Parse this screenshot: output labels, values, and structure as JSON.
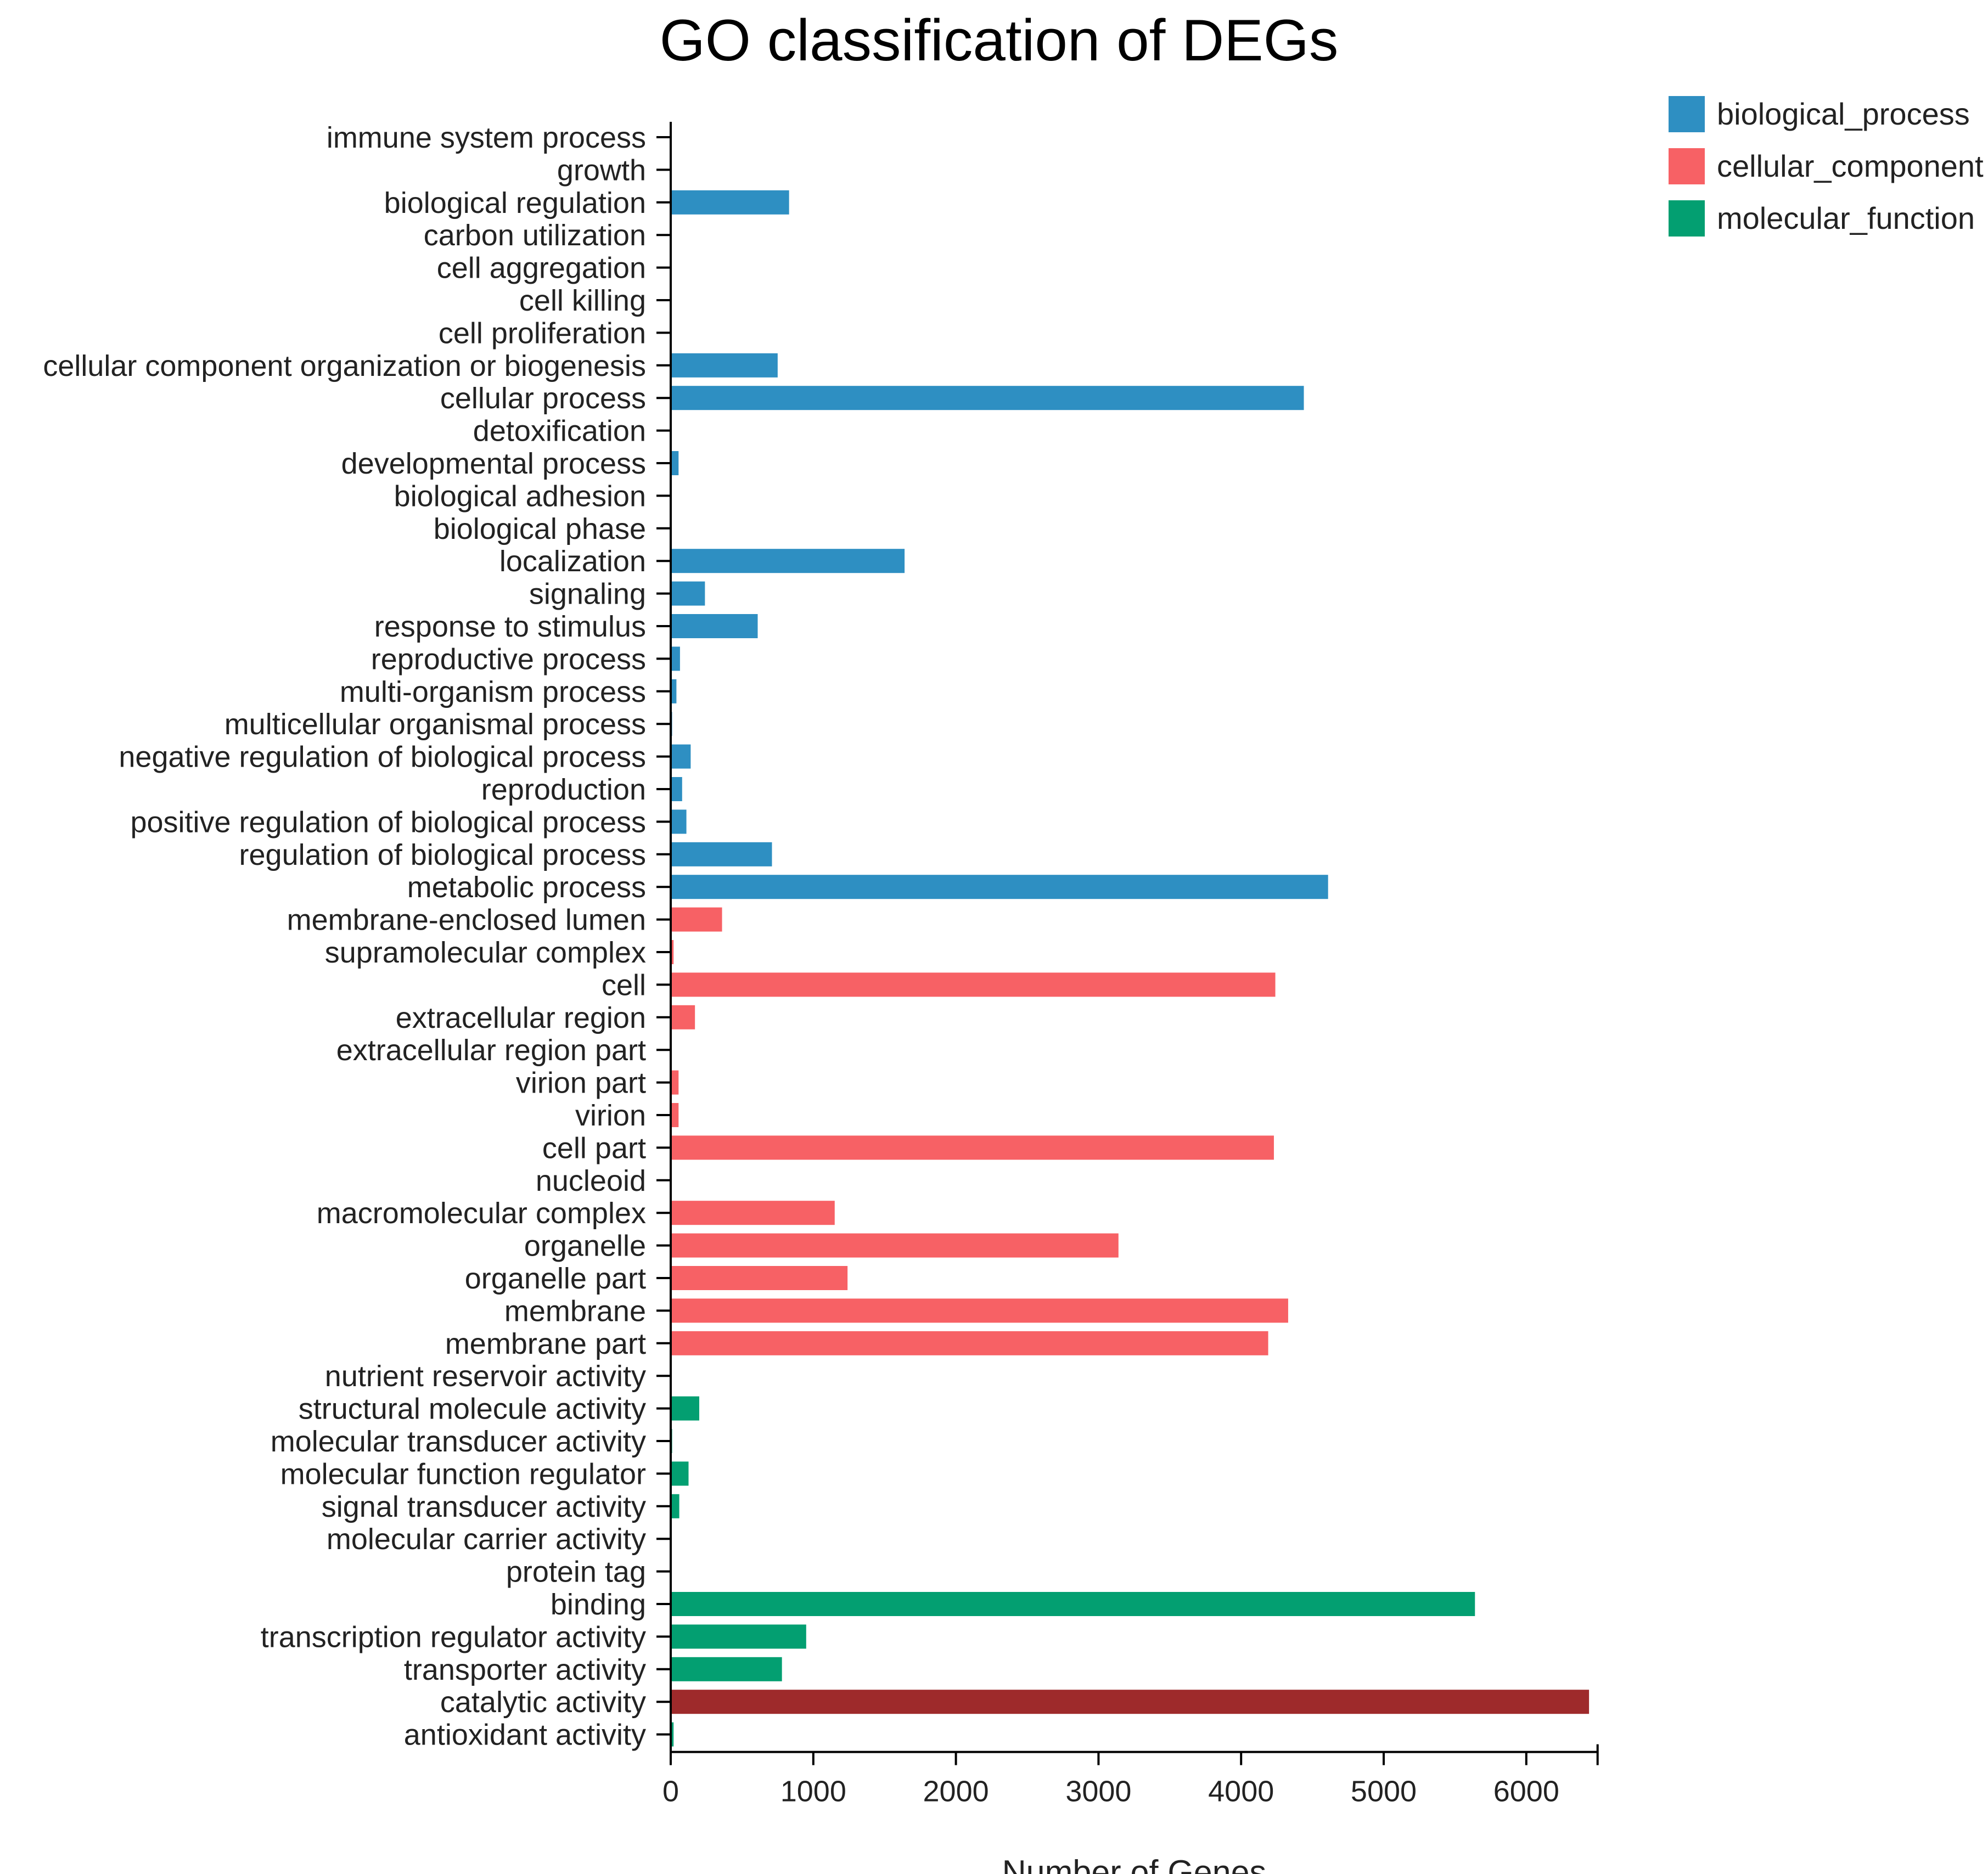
{
  "chart_data": {
    "type": "bar",
    "orientation": "horizontal",
    "title": "GO classification of DEGs",
    "xlabel": "Number of Genes",
    "ylabel": "",
    "xlim": [
      0,
      6500
    ],
    "xticks": [
      0,
      1000,
      2000,
      3000,
      4000,
      5000,
      6000
    ],
    "legend_position": "top-right",
    "series": [
      {
        "name": "biological_process",
        "color": "#2e8fc2"
      },
      {
        "name": "cellular_component",
        "color": "#f76165"
      },
      {
        "name": "molecular_function",
        "color": "#039f71"
      }
    ],
    "highlight_color": "#9e2a2b",
    "categories": [
      {
        "label": "immune system process",
        "value": 3,
        "group": "biological_process"
      },
      {
        "label": "growth",
        "value": 2,
        "group": "biological_process"
      },
      {
        "label": "biological regulation",
        "value": 830,
        "group": "biological_process"
      },
      {
        "label": "carbon utilization",
        "value": 2,
        "group": "biological_process"
      },
      {
        "label": "cell aggregation",
        "value": 2,
        "group": "biological_process"
      },
      {
        "label": "cell killing",
        "value": 2,
        "group": "biological_process"
      },
      {
        "label": "cell proliferation",
        "value": 3,
        "group": "biological_process"
      },
      {
        "label": "cellular component organization or biogenesis",
        "value": 750,
        "group": "biological_process"
      },
      {
        "label": "cellular process",
        "value": 4440,
        "group": "biological_process"
      },
      {
        "label": "detoxification",
        "value": 5,
        "group": "biological_process"
      },
      {
        "label": "developmental process",
        "value": 55,
        "group": "biological_process"
      },
      {
        "label": "biological adhesion",
        "value": 3,
        "group": "biological_process"
      },
      {
        "label": "biological phase",
        "value": 3,
        "group": "biological_process"
      },
      {
        "label": "localization",
        "value": 1640,
        "group": "biological_process"
      },
      {
        "label": "signaling",
        "value": 240,
        "group": "biological_process"
      },
      {
        "label": "response to stimulus",
        "value": 610,
        "group": "biological_process"
      },
      {
        "label": "reproductive process",
        "value": 65,
        "group": "biological_process"
      },
      {
        "label": "multi-organism process",
        "value": 40,
        "group": "biological_process"
      },
      {
        "label": "multicellular organismal process",
        "value": 10,
        "group": "biological_process"
      },
      {
        "label": "negative regulation of biological process",
        "value": 140,
        "group": "biological_process"
      },
      {
        "label": "reproduction",
        "value": 80,
        "group": "biological_process"
      },
      {
        "label": "positive regulation of biological process",
        "value": 110,
        "group": "biological_process"
      },
      {
        "label": "regulation of biological process",
        "value": 710,
        "group": "biological_process"
      },
      {
        "label": "metabolic process",
        "value": 4610,
        "group": "biological_process"
      },
      {
        "label": "membrane-enclosed lumen",
        "value": 360,
        "group": "cellular_component"
      },
      {
        "label": "supramolecular complex",
        "value": 20,
        "group": "cellular_component"
      },
      {
        "label": "cell",
        "value": 4240,
        "group": "cellular_component"
      },
      {
        "label": "extracellular region",
        "value": 170,
        "group": "cellular_component"
      },
      {
        "label": "extracellular region part",
        "value": 5,
        "group": "cellular_component"
      },
      {
        "label": "virion part",
        "value": 55,
        "group": "cellular_component"
      },
      {
        "label": "virion",
        "value": 55,
        "group": "cellular_component"
      },
      {
        "label": "cell part",
        "value": 4230,
        "group": "cellular_component"
      },
      {
        "label": "nucleoid",
        "value": 5,
        "group": "cellular_component"
      },
      {
        "label": "macromolecular complex",
        "value": 1150,
        "group": "cellular_component"
      },
      {
        "label": "organelle",
        "value": 3140,
        "group": "cellular_component"
      },
      {
        "label": "organelle part",
        "value": 1240,
        "group": "cellular_component"
      },
      {
        "label": "membrane",
        "value": 4330,
        "group": "cellular_component"
      },
      {
        "label": "membrane part",
        "value": 4190,
        "group": "cellular_component"
      },
      {
        "label": "nutrient reservoir activity",
        "value": 5,
        "group": "molecular_function"
      },
      {
        "label": "structural molecule activity",
        "value": 200,
        "group": "molecular_function"
      },
      {
        "label": "molecular transducer activity",
        "value": 10,
        "group": "molecular_function"
      },
      {
        "label": "molecular function regulator",
        "value": 125,
        "group": "molecular_function"
      },
      {
        "label": "signal transducer activity",
        "value": 60,
        "group": "molecular_function"
      },
      {
        "label": "molecular carrier activity",
        "value": 3,
        "group": "molecular_function"
      },
      {
        "label": "protein tag",
        "value": 2,
        "group": "molecular_function"
      },
      {
        "label": "binding",
        "value": 5640,
        "group": "molecular_function"
      },
      {
        "label": "transcription regulator activity",
        "value": 950,
        "group": "molecular_function"
      },
      {
        "label": "transporter activity",
        "value": 780,
        "group": "molecular_function"
      },
      {
        "label": "catalytic activity",
        "value": 6440,
        "group": "molecular_function",
        "highlight": true
      },
      {
        "label": "antioxidant activity",
        "value": 20,
        "group": "molecular_function"
      }
    ]
  }
}
